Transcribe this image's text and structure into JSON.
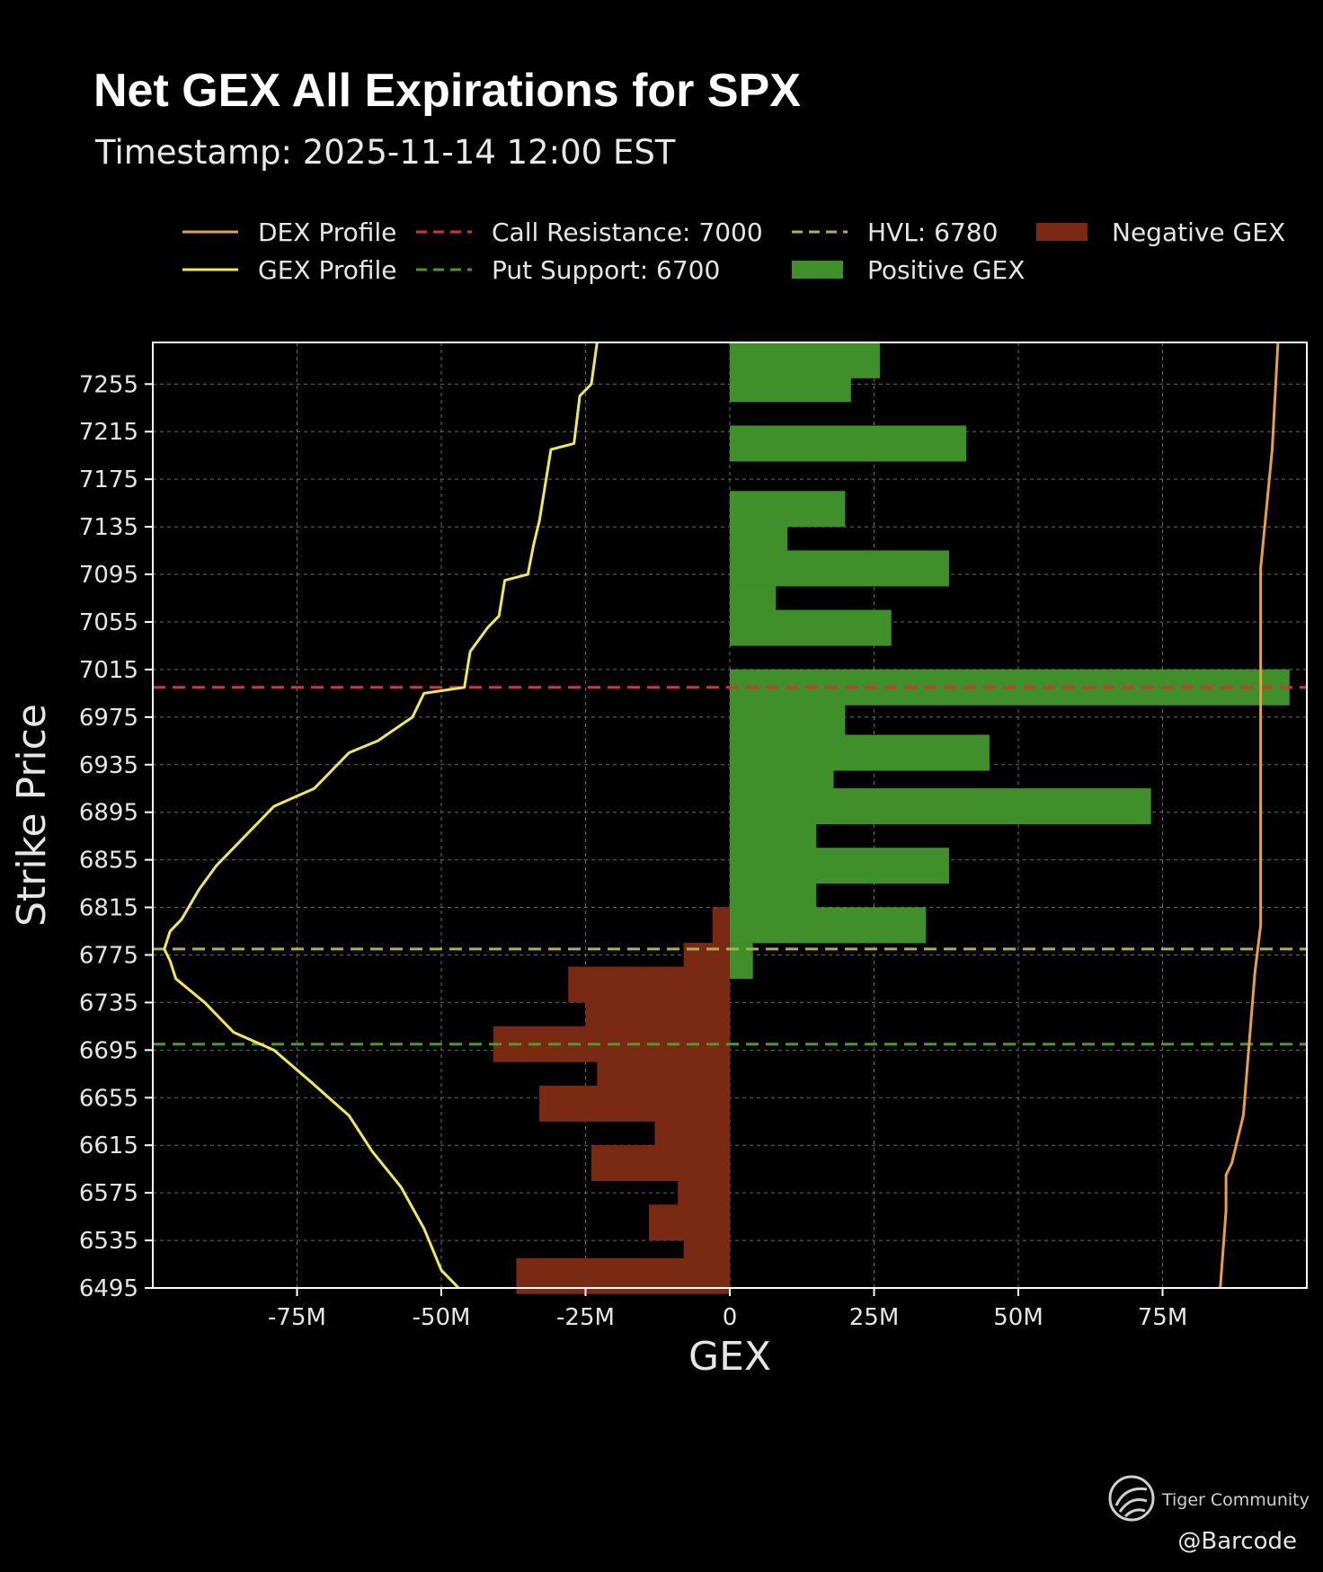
{
  "chart_data": {
    "type": "bar",
    "orientation": "horizontal",
    "title": "Net GEX All Expirations for SPX",
    "subtitle": "Timestamp: 2025-11-14 12:00 EST",
    "xlabel": "GEX",
    "ylabel": "Strike Price",
    "xlim": [
      -100,
      100
    ],
    "ylim": [
      6495,
      7290
    ],
    "x_ticks": [
      {
        "value": -75,
        "label": "-75M"
      },
      {
        "value": -50,
        "label": "-50M"
      },
      {
        "value": -25,
        "label": "-25M"
      },
      {
        "value": 0,
        "label": "0"
      },
      {
        "value": 25,
        "label": "25M"
      },
      {
        "value": 50,
        "label": "50M"
      },
      {
        "value": 75,
        "label": "75M"
      }
    ],
    "y_ticks": [
      {
        "value": 7255,
        "label": "7255"
      },
      {
        "value": 7215,
        "label": "7215"
      },
      {
        "value": 7175,
        "label": "7175"
      },
      {
        "value": 7135,
        "label": "7135"
      },
      {
        "value": 7095,
        "label": "7095"
      },
      {
        "value": 7055,
        "label": "7055"
      },
      {
        "value": 7015,
        "label": "7015"
      },
      {
        "value": 6975,
        "label": "6975"
      },
      {
        "value": 6935,
        "label": "6935"
      },
      {
        "value": 6895,
        "label": "6895"
      },
      {
        "value": 6855,
        "label": "6855"
      },
      {
        "value": 6815,
        "label": "6815"
      },
      {
        "value": 6775,
        "label": "6775"
      },
      {
        "value": 6735,
        "label": "6735"
      },
      {
        "value": 6695,
        "label": "6695"
      },
      {
        "value": 6655,
        "label": "6655"
      },
      {
        "value": 6615,
        "label": "6615"
      },
      {
        "value": 6575,
        "label": "6575"
      },
      {
        "value": 6535,
        "label": "6535"
      },
      {
        "value": 6495,
        "label": "6495"
      }
    ],
    "grid": true,
    "legend_position": "top",
    "legend": [
      {
        "label": "DEX Profile",
        "kind": "line",
        "color": "#e8a040"
      },
      {
        "label": "GEX Profile",
        "kind": "line",
        "color": "#f0ea50"
      },
      {
        "label": "Call Resistance: 7000",
        "kind": "dashed",
        "color": "#e03030"
      },
      {
        "label": "Put Support: 6700",
        "kind": "dashed",
        "color": "#4a9a30"
      },
      {
        "label": "HVL: 6780",
        "kind": "dashed",
        "color": "#b0b050"
      },
      {
        "label": "Positive GEX",
        "kind": "patch",
        "color": "#3f8f2a"
      },
      {
        "label": "Negative GEX",
        "kind": "patch",
        "color": "#7a2a12"
      }
    ],
    "reference_lines": [
      {
        "name": "Call Resistance",
        "strike": 7000,
        "color": "#e03030"
      },
      {
        "name": "HVL",
        "strike": 6780,
        "color": "#b0b050"
      },
      {
        "name": "Put Support",
        "strike": 6700,
        "color": "#4a9a30"
      }
    ],
    "positive_gex": [
      {
        "strike": 7275,
        "value": 26
      },
      {
        "strike": 7255,
        "value": 21
      },
      {
        "strike": 7205,
        "value": 41
      },
      {
        "strike": 7150,
        "value": 20
      },
      {
        "strike": 7130,
        "value": 10
      },
      {
        "strike": 7100,
        "value": 38
      },
      {
        "strike": 7070,
        "value": 8
      },
      {
        "strike": 7050,
        "value": 28
      },
      {
        "strike": 7000,
        "value": 97
      },
      {
        "strike": 6970,
        "value": 20
      },
      {
        "strike": 6945,
        "value": 45
      },
      {
        "strike": 6915,
        "value": 18
      },
      {
        "strike": 6900,
        "value": 73
      },
      {
        "strike": 6870,
        "value": 15
      },
      {
        "strike": 6850,
        "value": 38
      },
      {
        "strike": 6820,
        "value": 15
      },
      {
        "strike": 6800,
        "value": 34
      },
      {
        "strike": 6770,
        "value": 4
      }
    ],
    "negative_gex": [
      {
        "strike": 6800,
        "value": -3
      },
      {
        "strike": 6770,
        "value": -8
      },
      {
        "strike": 6750,
        "value": -28
      },
      {
        "strike": 6720,
        "value": -25
      },
      {
        "strike": 6700,
        "value": -41
      },
      {
        "strike": 6670,
        "value": -23
      },
      {
        "strike": 6650,
        "value": -33
      },
      {
        "strike": 6620,
        "value": -13
      },
      {
        "strike": 6600,
        "value": -24
      },
      {
        "strike": 6575,
        "value": -9
      },
      {
        "strike": 6550,
        "value": -14
      },
      {
        "strike": 6525,
        "value": -8
      },
      {
        "strike": 6505,
        "value": -37
      }
    ],
    "gex_profile": [
      {
        "strike": 7290,
        "value": -23
      },
      {
        "strike": 7255,
        "value": -24
      },
      {
        "strike": 7245,
        "value": -26
      },
      {
        "strike": 7205,
        "value": -27
      },
      {
        "strike": 7200,
        "value": -31
      },
      {
        "strike": 7140,
        "value": -33
      },
      {
        "strike": 7120,
        "value": -34
      },
      {
        "strike": 7095,
        "value": -35
      },
      {
        "strike": 7090,
        "value": -39
      },
      {
        "strike": 7060,
        "value": -40
      },
      {
        "strike": 7050,
        "value": -42
      },
      {
        "strike": 7030,
        "value": -45
      },
      {
        "strike": 7000,
        "value": -46
      },
      {
        "strike": 6995,
        "value": -53
      },
      {
        "strike": 6975,
        "value": -55
      },
      {
        "strike": 6955,
        "value": -61
      },
      {
        "strike": 6945,
        "value": -66
      },
      {
        "strike": 6915,
        "value": -72
      },
      {
        "strike": 6900,
        "value": -79
      },
      {
        "strike": 6870,
        "value": -85
      },
      {
        "strike": 6850,
        "value": -89
      },
      {
        "strike": 6830,
        "value": -92
      },
      {
        "strike": 6805,
        "value": -95
      },
      {
        "strike": 6795,
        "value": -97
      },
      {
        "strike": 6780,
        "value": -98
      },
      {
        "strike": 6770,
        "value": -97
      },
      {
        "strike": 6755,
        "value": -96
      },
      {
        "strike": 6735,
        "value": -91
      },
      {
        "strike": 6710,
        "value": -86
      },
      {
        "strike": 6695,
        "value": -79
      },
      {
        "strike": 6670,
        "value": -73
      },
      {
        "strike": 6640,
        "value": -66
      },
      {
        "strike": 6610,
        "value": -62
      },
      {
        "strike": 6580,
        "value": -57
      },
      {
        "strike": 6545,
        "value": -53
      },
      {
        "strike": 6510,
        "value": -50
      },
      {
        "strike": 6495,
        "value": -47
      }
    ],
    "dex_profile": [
      {
        "strike": 7290,
        "value": 95
      },
      {
        "strike": 7200,
        "value": 94
      },
      {
        "strike": 7100,
        "value": 92
      },
      {
        "strike": 7000,
        "value": 92
      },
      {
        "strike": 6900,
        "value": 92
      },
      {
        "strike": 6800,
        "value": 92
      },
      {
        "strike": 6760,
        "value": 91
      },
      {
        "strike": 6700,
        "value": 90
      },
      {
        "strike": 6640,
        "value": 89
      },
      {
        "strike": 6600,
        "value": 87
      },
      {
        "strike": 6590,
        "value": 86
      },
      {
        "strike": 6560,
        "value": 86
      },
      {
        "strike": 6495,
        "value": 85
      }
    ]
  },
  "watermark": {
    "brand": "Tiger Community",
    "handle": "@Barcode"
  }
}
